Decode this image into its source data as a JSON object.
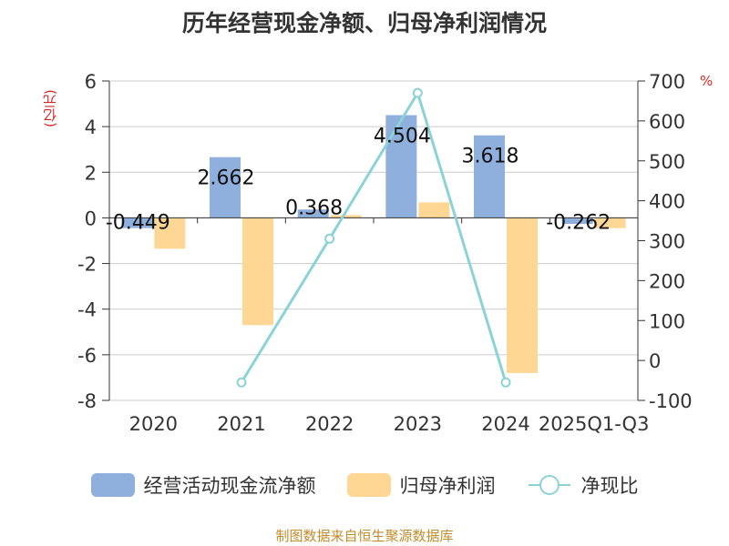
{
  "title": "历年经营现金净额、归母净利润情况",
  "left_unit": "(亿元)",
  "right_unit": "%",
  "source": "制图数据来自恒生聚源数据库",
  "colors": {
    "cash": "#8fb0dd",
    "profit": "#fed795",
    "ratio": "#8bd3d6"
  },
  "legend": [
    {
      "label": "经营活动现金流净额",
      "type": "bar",
      "color": "#8fb0dd"
    },
    {
      "label": "归母净利润",
      "type": "bar",
      "color": "#fed795"
    },
    {
      "label": "净现比",
      "type": "line",
      "color": "#8bd3d6"
    }
  ],
  "chart_data": {
    "type": "bar",
    "categories": [
      "2020",
      "2021",
      "2022",
      "2023",
      "2024",
      "2025Q1-Q3"
    ],
    "series": [
      {
        "name": "经营活动现金流净额",
        "values": [
          -0.449,
          2.662,
          0.368,
          4.504,
          3.618,
          -0.262
        ],
        "labels": [
          "-0.449",
          "2.662",
          "0.368",
          "4.504",
          "3.618",
          "-0.262"
        ]
      },
      {
        "name": "归母净利润",
        "values": [
          -1.35,
          -4.7,
          0.12,
          0.68,
          -6.8,
          -0.45
        ]
      },
      {
        "name": "净现比",
        "values": [
          null,
          -55,
          305,
          670,
          -55,
          null
        ],
        "axis": "right",
        "type": "line"
      }
    ],
    "y_left": {
      "lim": [
        -8,
        6
      ],
      "ticks": [
        "-8",
        "-6",
        "-4",
        "-2",
        "0",
        "2",
        "4",
        "6"
      ]
    },
    "y_right": {
      "lim": [
        -100,
        700
      ],
      "ticks": [
        "-100",
        "0",
        "100",
        "200",
        "300",
        "400",
        "500",
        "600",
        "700"
      ]
    },
    "grid": true,
    "legend_position": "bottom"
  }
}
